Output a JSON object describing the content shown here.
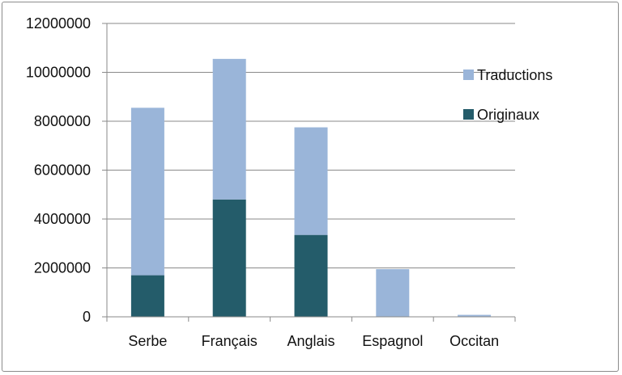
{
  "chart_data": {
    "type": "bar",
    "stacked": true,
    "categories": [
      "Serbe",
      "Français",
      "Anglais",
      "Espagnol",
      "Occitan"
    ],
    "series": [
      {
        "name": "Originaux",
        "color": "#245c6a",
        "values": [
          1700000,
          4800000,
          3350000,
          0,
          0
        ]
      },
      {
        "name": "Traductions",
        "color": "#9ab5d9",
        "values": [
          6850000,
          5750000,
          4400000,
          1950000,
          80000
        ]
      }
    ],
    "ylim": [
      0,
      12000000
    ],
    "yticks": [
      0,
      2000000,
      4000000,
      6000000,
      8000000,
      10000000,
      12000000
    ],
    "ytick_labels": [
      "0",
      "2000000",
      "4000000",
      "6000000",
      "8000000",
      "10000000",
      "12000000"
    ],
    "grid": true,
    "legend_position": "right",
    "legend_order": [
      "Traductions",
      "Originaux"
    ],
    "title": "",
    "xlabel": "",
    "ylabel": ""
  }
}
